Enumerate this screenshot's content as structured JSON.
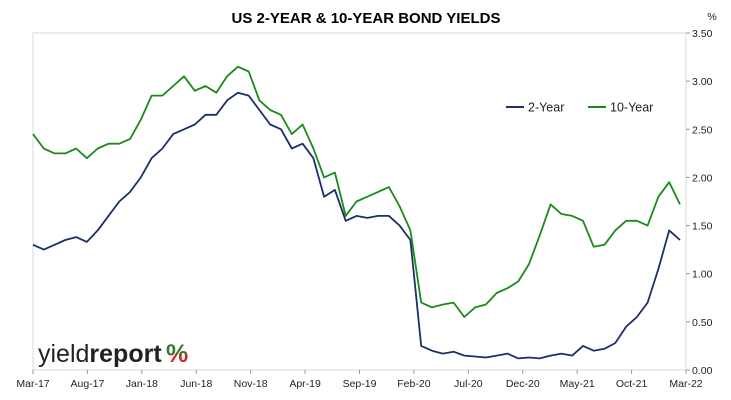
{
  "chart_data": {
    "type": "line",
    "title": "US 2-YEAR & 10-YEAR BOND YIELDS",
    "y_unit": "%",
    "ylim": [
      0,
      3.5
    ],
    "y_ticks": [
      "0.00",
      "0.50",
      "1.00",
      "1.50",
      "2.00",
      "2.50",
      "3.00",
      "3.50"
    ],
    "y_axis_position": "right",
    "x_ticks": [
      "Mar-17",
      "Aug-17",
      "Jan-18",
      "Jun-18",
      "Nov-18",
      "Apr-19",
      "Sep-19",
      "Feb-20",
      "Jul-20",
      "Dec-20",
      "May-21",
      "Oct-21",
      "Mar-22"
    ],
    "grid": false,
    "legend_position": "top-right",
    "series": [
      {
        "name": "2-Year",
        "color": "#1a2f6b",
        "x": [
          "Mar-17",
          "Apr-17",
          "May-17",
          "Jun-17",
          "Jul-17",
          "Aug-17",
          "Sep-17",
          "Oct-17",
          "Nov-17",
          "Dec-17",
          "Jan-18",
          "Feb-18",
          "Mar-18",
          "Apr-18",
          "May-18",
          "Jun-18",
          "Jul-18",
          "Aug-18",
          "Sep-18",
          "Oct-18",
          "Nov-18",
          "Dec-18",
          "Jan-19",
          "Feb-19",
          "Mar-19",
          "Apr-19",
          "May-19",
          "Jun-19",
          "Jul-19",
          "Aug-19",
          "Sep-19",
          "Oct-19",
          "Nov-19",
          "Dec-19",
          "Jan-20",
          "Feb-20",
          "Mar-20",
          "Apr-20",
          "May-20",
          "Jun-20",
          "Jul-20",
          "Aug-20",
          "Sep-20",
          "Oct-20",
          "Nov-20",
          "Dec-20",
          "Jan-21",
          "Feb-21",
          "Mar-21",
          "Apr-21",
          "May-21",
          "Jun-21",
          "Jul-21",
          "Aug-21",
          "Sep-21",
          "Oct-21",
          "Nov-21",
          "Dec-21",
          "Jan-22",
          "Feb-22",
          "Mar-22"
        ],
        "values": [
          1.3,
          1.25,
          1.3,
          1.35,
          1.38,
          1.33,
          1.45,
          1.6,
          1.75,
          1.85,
          2.0,
          2.2,
          2.3,
          2.45,
          2.5,
          2.55,
          2.65,
          2.65,
          2.8,
          2.88,
          2.85,
          2.7,
          2.55,
          2.5,
          2.3,
          2.35,
          2.2,
          1.8,
          1.87,
          1.55,
          1.6,
          1.58,
          1.6,
          1.6,
          1.5,
          1.35,
          0.25,
          0.2,
          0.17,
          0.19,
          0.15,
          0.14,
          0.13,
          0.15,
          0.17,
          0.12,
          0.13,
          0.12,
          0.15,
          0.17,
          0.15,
          0.25,
          0.2,
          0.22,
          0.28,
          0.45,
          0.55,
          0.7,
          1.05,
          1.45,
          1.35
        ]
      },
      {
        "name": "10-Year",
        "color": "#1a8a1a",
        "x": [
          "Mar-17",
          "Apr-17",
          "May-17",
          "Jun-17",
          "Jul-17",
          "Aug-17",
          "Sep-17",
          "Oct-17",
          "Nov-17",
          "Dec-17",
          "Jan-18",
          "Feb-18",
          "Mar-18",
          "Apr-18",
          "May-18",
          "Jun-18",
          "Jul-18",
          "Aug-18",
          "Sep-18",
          "Oct-18",
          "Nov-18",
          "Dec-18",
          "Jan-19",
          "Feb-19",
          "Mar-19",
          "Apr-19",
          "May-19",
          "Jun-19",
          "Jul-19",
          "Aug-19",
          "Sep-19",
          "Oct-19",
          "Nov-19",
          "Dec-19",
          "Jan-20",
          "Feb-20",
          "Mar-20",
          "Apr-20",
          "May-20",
          "Jun-20",
          "Jul-20",
          "Aug-20",
          "Sep-20",
          "Oct-20",
          "Nov-20",
          "Dec-20",
          "Jan-21",
          "Feb-21",
          "Mar-21",
          "Apr-21",
          "May-21",
          "Jun-21",
          "Jul-21",
          "Aug-21",
          "Sep-21",
          "Oct-21",
          "Nov-21",
          "Dec-21",
          "Jan-22",
          "Feb-22",
          "Mar-22"
        ],
        "values": [
          2.45,
          2.3,
          2.25,
          2.25,
          2.3,
          2.2,
          2.3,
          2.35,
          2.35,
          2.4,
          2.6,
          2.85,
          2.85,
          2.95,
          3.05,
          2.9,
          2.95,
          2.88,
          3.05,
          3.15,
          3.1,
          2.8,
          2.7,
          2.65,
          2.45,
          2.55,
          2.3,
          2.0,
          2.05,
          1.6,
          1.75,
          1.8,
          1.85,
          1.9,
          1.7,
          1.45,
          0.7,
          0.65,
          0.68,
          0.7,
          0.55,
          0.65,
          0.68,
          0.8,
          0.85,
          0.92,
          1.1,
          1.4,
          1.72,
          1.62,
          1.6,
          1.55,
          1.28,
          1.3,
          1.45,
          1.55,
          1.55,
          1.5,
          1.8,
          1.95,
          1.72
        ]
      }
    ]
  },
  "branding": {
    "logo_text_regular": "yield",
    "logo_text_bold": "report",
    "logo_symbol": "%",
    "logo_symbol_color_top": "#2e7d32",
    "logo_symbol_color_bottom": "#c62828"
  }
}
